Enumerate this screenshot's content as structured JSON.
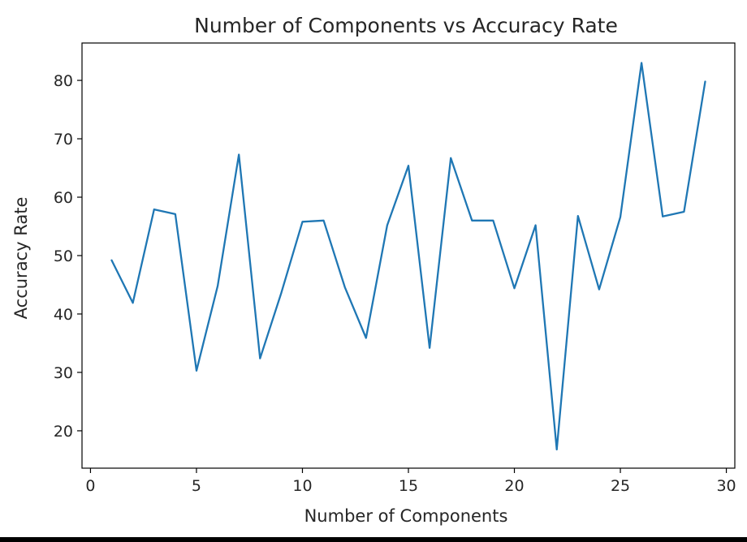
{
  "chart_data": {
    "type": "line",
    "title": "Number of Components vs Accuracy Rate",
    "xlabel": "Number of Components",
    "ylabel": "Accuracy Rate",
    "xlim": [
      -0.4,
      30.4
    ],
    "ylim": [
      13.6,
      86.4
    ],
    "xticks": [
      0,
      5,
      10,
      15,
      20,
      25,
      30
    ],
    "yticks": [
      20,
      30,
      40,
      50,
      60,
      70,
      80
    ],
    "grid": false,
    "line_color": "#1f77b4",
    "series": [
      {
        "x": [
          1,
          2,
          3,
          4,
          5,
          6,
          7,
          8,
          9,
          10,
          11,
          12,
          13,
          14,
          15,
          16,
          17,
          18,
          19,
          20,
          21,
          22,
          23,
          24,
          25,
          26,
          27,
          28,
          29
        ],
        "values": [
          49.2,
          41.9,
          57.9,
          57.1,
          30.3,
          44.8,
          67.3,
          32.4,
          43.6,
          55.8,
          56.0,
          44.6,
          35.9,
          55.2,
          65.4,
          34.2,
          66.7,
          56.0,
          56.0,
          44.4,
          55.2,
          16.8,
          56.8,
          44.2,
          56.6,
          83.0,
          56.7,
          57.5,
          79.8
        ]
      }
    ]
  }
}
